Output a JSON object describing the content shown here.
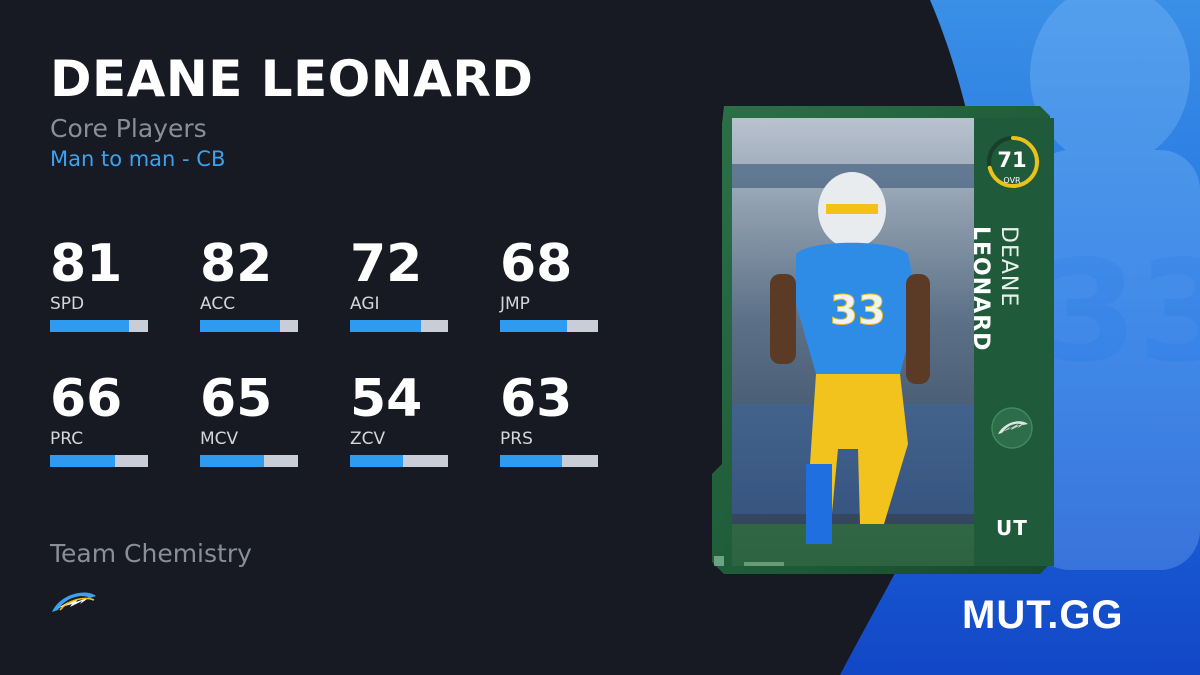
{
  "player": {
    "name": "DEANE LEONARD",
    "first_name": "DEANE",
    "last_name": "LEONARD",
    "program": "Core Players",
    "role": "Man to man - CB"
  },
  "stats": [
    {
      "value": "81",
      "label": "SPD",
      "fill": 0.81
    },
    {
      "value": "82",
      "label": "ACC",
      "fill": 0.82
    },
    {
      "value": "72",
      "label": "AGI",
      "fill": 0.72
    },
    {
      "value": "68",
      "label": "JMP",
      "fill": 0.68
    },
    {
      "value": "66",
      "label": "PRC",
      "fill": 0.66
    },
    {
      "value": "65",
      "label": "MCV",
      "fill": 0.65
    },
    {
      "value": "54",
      "label": "ZCV",
      "fill": 0.54
    },
    {
      "value": "63",
      "label": "PRS",
      "fill": 0.63
    }
  ],
  "chemistry": {
    "title": "Team Chemistry",
    "team_icon": "chargers-bolt-icon"
  },
  "card": {
    "ovr": "71",
    "ovr_label": "OVR",
    "ovr_fill": 0.71,
    "program_badge": "UT",
    "team_icon": "chargers-bolt-icon",
    "jersey_number": "33"
  },
  "brand": "MUT.GG",
  "colors": {
    "background": "#171a23",
    "accent_blue": "#2f9bf0",
    "bar_track": "#c9cdd7",
    "card_green": "#1f5a3a",
    "ovr_ring": "#e9c21c",
    "powder_blue": "#1e78e6"
  }
}
